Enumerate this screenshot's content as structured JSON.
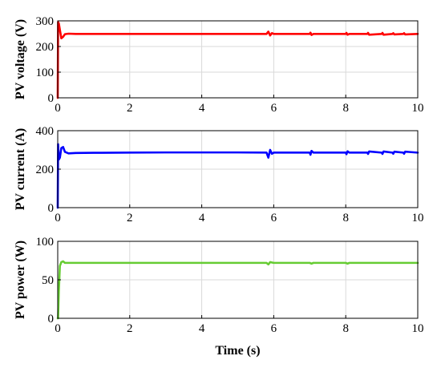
{
  "chart_data": [
    {
      "type": "line",
      "ylabel": "PV voltage (V)",
      "xlabel": "",
      "xlim": [
        0,
        10
      ],
      "ylim": [
        0,
        300
      ],
      "xticks": [
        "0",
        "2",
        "4",
        "6",
        "8",
        "10"
      ],
      "yticks": [
        "0",
        "100",
        "200",
        "300"
      ],
      "grid": true,
      "color": "#ff0000",
      "series": [
        {
          "x": [
            0,
            0.01,
            0.03,
            0.06,
            0.1,
            0.15,
            0.2,
            0.3,
            0.5,
            1,
            2,
            3,
            4,
            5,
            5.8,
            5.85,
            5.9,
            5.95,
            6,
            7,
            7.02,
            7.05,
            7.1,
            8,
            8.02,
            8.05,
            8.1,
            8.6,
            8.62,
            8.65,
            9,
            9.02,
            9.05,
            9.3,
            9.32,
            9.35,
            9.6,
            9.62,
            9.65,
            10
          ],
          "y": [
            0,
            295,
            290,
            265,
            232,
            238,
            248,
            250,
            249,
            249,
            249,
            249,
            249,
            249,
            249,
            258,
            243,
            252,
            249,
            249,
            254,
            245,
            249,
            249,
            253,
            246,
            249,
            249,
            253,
            246,
            249,
            253,
            246,
            249,
            252,
            247,
            249,
            252,
            247,
            249
          ]
        }
      ]
    },
    {
      "type": "line",
      "ylabel": "PV current (A)",
      "xlabel": "",
      "xlim": [
        0,
        10
      ],
      "ylim": [
        0,
        400
      ],
      "xticks": [
        "0",
        "2",
        "4",
        "6",
        "8",
        "10"
      ],
      "yticks": [
        "0",
        "200",
        "400"
      ],
      "grid": true,
      "color": "#0000ff",
      "series": [
        {
          "x": [
            0,
            0.01,
            0.03,
            0.06,
            0.1,
            0.15,
            0.2,
            0.3,
            0.5,
            1,
            2,
            3,
            4,
            5,
            5.8,
            5.85,
            5.9,
            5.95,
            6,
            7,
            7.02,
            7.05,
            7.1,
            8,
            8.02,
            8.05,
            8.1,
            8.6,
            8.62,
            8.65,
            9,
            9.02,
            9.05,
            9.3,
            9.32,
            9.35,
            9.6,
            9.62,
            9.65,
            10
          ],
          "y": [
            0,
            330,
            250,
            260,
            310,
            315,
            290,
            282,
            284,
            285,
            286,
            287,
            287,
            287,
            286,
            260,
            300,
            280,
            286,
            286,
            275,
            295,
            286,
            286,
            278,
            293,
            286,
            286,
            279,
            292,
            286,
            279,
            292,
            286,
            280,
            291,
            286,
            280,
            291,
            286
          ]
        }
      ]
    },
    {
      "type": "line",
      "ylabel": "PV power (W)",
      "xlabel": "Time (s)",
      "xlim": [
        0,
        10
      ],
      "ylim": [
        0,
        100
      ],
      "xticks": [
        "0",
        "2",
        "4",
        "6",
        "8",
        "10"
      ],
      "yticks": [
        "0",
        "50",
        "100"
      ],
      "grid": true,
      "color": "#66cc33",
      "series": [
        {
          "x": [
            0,
            0.01,
            0.03,
            0.06,
            0.1,
            0.15,
            0.2,
            0.3,
            0.5,
            1,
            2,
            3,
            4,
            5,
            5.8,
            5.85,
            5.9,
            6,
            7,
            7.05,
            7.1,
            8,
            8.05,
            8.1,
            9,
            10
          ],
          "y": [
            0,
            0,
            35,
            68,
            73,
            74,
            72,
            72,
            72,
            72,
            72,
            72,
            72,
            72,
            72,
            70,
            73,
            72,
            72,
            71,
            72,
            72,
            71,
            72,
            72,
            72
          ]
        }
      ]
    }
  ]
}
